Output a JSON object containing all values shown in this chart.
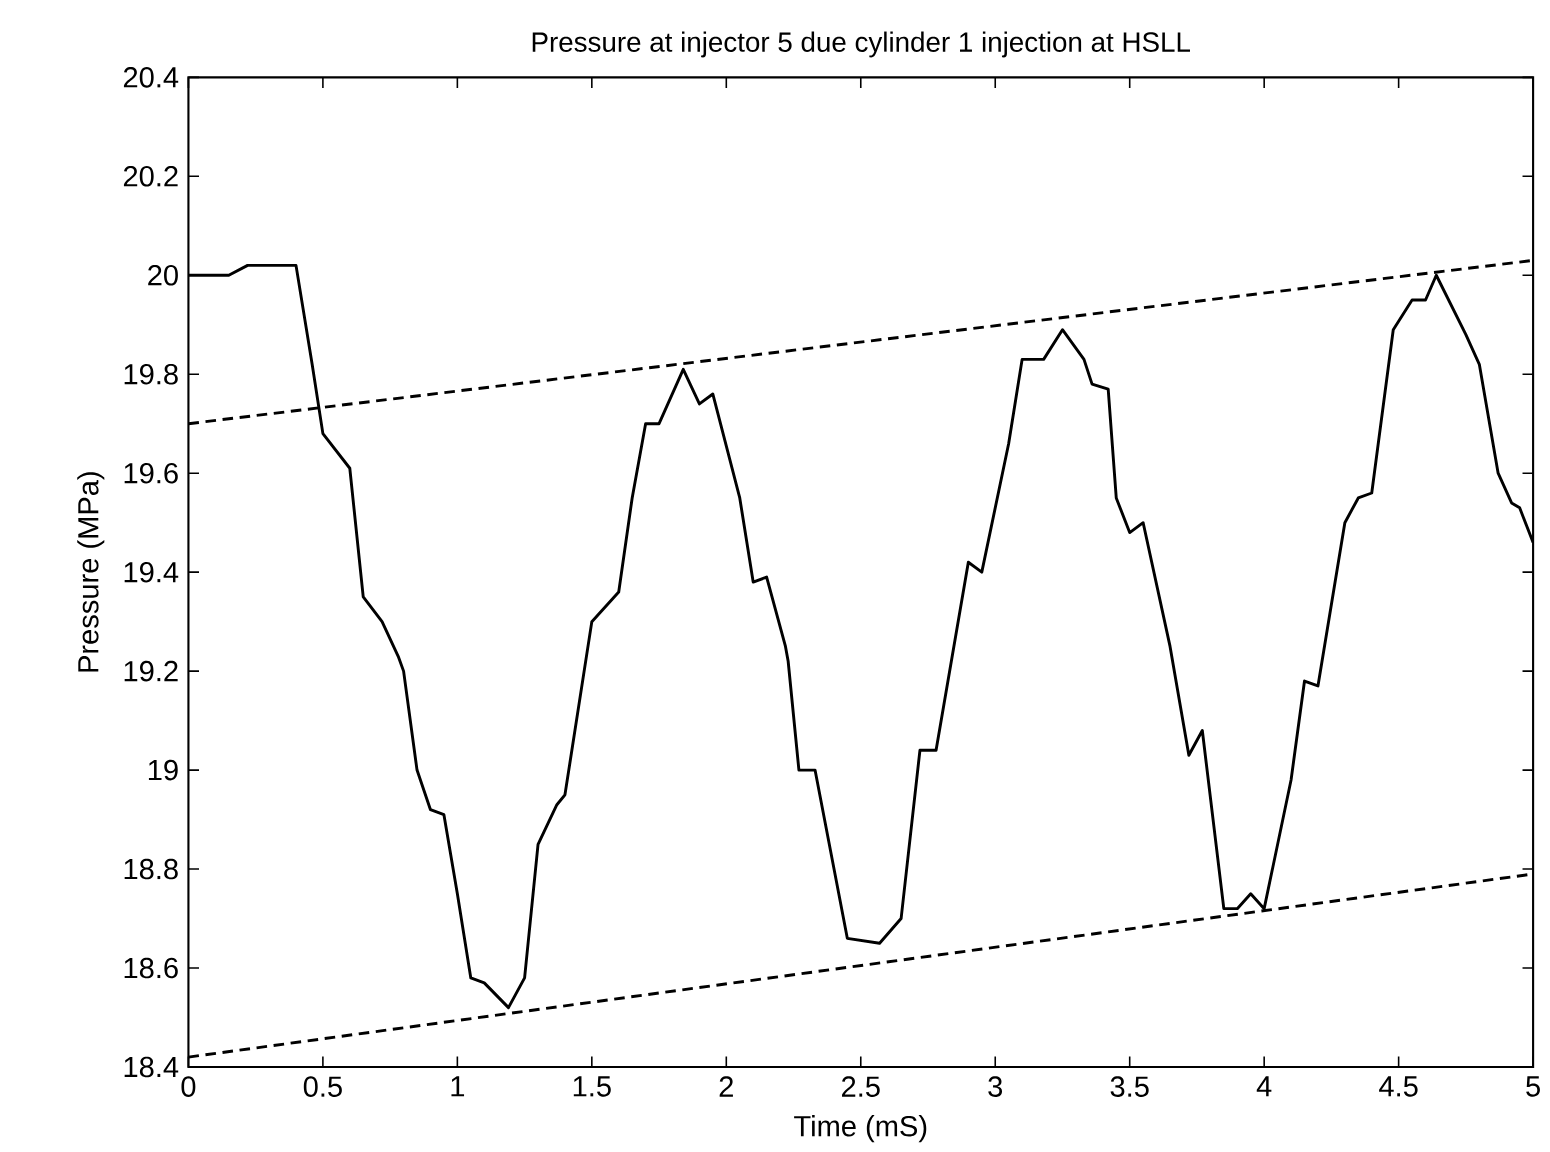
{
  "chart_data": {
    "type": "line",
    "title": "Pressure at injector 5 due cylinder 1 injection at HSLL",
    "xlabel": "Time (mS)",
    "ylabel": "Pressure (MPa)",
    "xlim": [
      0,
      5
    ],
    "ylim": [
      18.4,
      20.4
    ],
    "xticks": [
      0,
      0.5,
      1,
      1.5,
      2,
      2.5,
      3,
      3.5,
      4,
      4.5,
      5
    ],
    "yticks": [
      18.4,
      18.6,
      18.8,
      19,
      19.2,
      19.4,
      19.6,
      19.8,
      20,
      20.2,
      20.4
    ],
    "marker": "none",
    "series": [
      {
        "color": "#000000",
        "line_style": "solid",
        "x": [
          0,
          0.15,
          0.22,
          0.4,
          0.46,
          0.5,
          0.6,
          0.65,
          0.72,
          0.78,
          0.8,
          0.85,
          0.9,
          0.95,
          1.0,
          1.05,
          1.1,
          1.19,
          1.25,
          1.3,
          1.37,
          1.4,
          1.5,
          1.6,
          1.65,
          1.7,
          1.75,
          1.84,
          1.9,
          1.95,
          2.05,
          2.1,
          2.15,
          2.22,
          2.23,
          2.27,
          2.33,
          2.45,
          2.57,
          2.65,
          2.72,
          2.78,
          2.9,
          2.95,
          3.05,
          3.1,
          3.18,
          3.25,
          3.33,
          3.36,
          3.42,
          3.45,
          3.5,
          3.55,
          3.65,
          3.72,
          3.77,
          3.85,
          3.9,
          3.95,
          4.0,
          4.1,
          4.15,
          4.2,
          4.3,
          4.35,
          4.4,
          4.48,
          4.55,
          4.6,
          4.64,
          4.75,
          4.8,
          4.87,
          4.92,
          4.95,
          5.0
        ],
        "values": [
          20.0,
          20.0,
          20.02,
          20.02,
          19.82,
          19.68,
          19.61,
          19.35,
          19.3,
          19.23,
          19.2,
          19.0,
          18.92,
          18.91,
          18.75,
          18.58,
          18.57,
          18.52,
          18.58,
          18.85,
          18.93,
          18.95,
          19.3,
          19.36,
          19.55,
          19.7,
          19.7,
          19.81,
          19.74,
          19.76,
          19.55,
          19.38,
          19.39,
          19.25,
          19.22,
          19.0,
          19.0,
          18.66,
          18.65,
          18.7,
          19.04,
          19.04,
          19.42,
          19.4,
          19.66,
          19.83,
          19.83,
          19.89,
          19.83,
          19.78,
          19.77,
          19.55,
          19.48,
          19.5,
          19.25,
          19.03,
          19.08,
          18.72,
          18.72,
          18.75,
          18.72,
          18.98,
          19.18,
          19.17,
          19.5,
          19.55,
          19.56,
          19.89,
          19.95,
          19.95,
          20.0,
          19.88,
          19.82,
          19.6,
          19.54,
          19.53,
          19.46
        ]
      },
      {
        "color": "#000000",
        "line_style": "dashed",
        "x": [
          0,
          5
        ],
        "values": [
          19.7,
          20.03
        ]
      },
      {
        "color": "#000000",
        "line_style": "dashed",
        "x": [
          0,
          5
        ],
        "values": [
          18.42,
          18.79
        ]
      }
    ]
  }
}
